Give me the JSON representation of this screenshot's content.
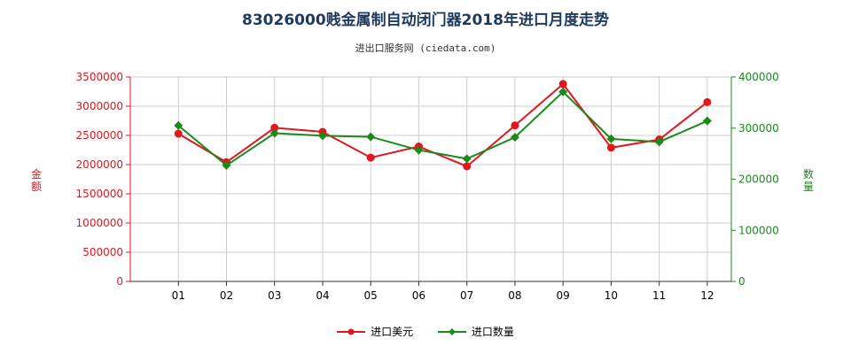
{
  "colors": {
    "amount": "#e3161b",
    "quantity": "#1a8b1a",
    "grid": "#cccccc",
    "title": "#1f3a5f"
  },
  "chart_data": {
    "type": "line",
    "title": "83026000贱金属制自动闭门器2018年进口月度走势",
    "subtitle": "进出口服务网 (ciedata.com)",
    "categories": [
      "01",
      "02",
      "03",
      "04",
      "05",
      "06",
      "07",
      "08",
      "09",
      "10",
      "11",
      "12"
    ],
    "y_left": {
      "label": "金额",
      "ylim": [
        0,
        3500000
      ],
      "ticks": [
        "0",
        "500000",
        "1000000",
        "1500000",
        "2000000",
        "2500000",
        "3000000",
        "3500000"
      ]
    },
    "y_right": {
      "label": "数量",
      "ylim": [
        0,
        400000
      ],
      "ticks": [
        "0",
        "100000",
        "200000",
        "300000",
        "400000"
      ]
    },
    "series": [
      {
        "name": "进口美元",
        "axis": "left",
        "values": [
          2530000,
          2040000,
          2630000,
          2560000,
          2120000,
          2310000,
          1970000,
          2670000,
          3380000,
          2290000,
          2430000,
          3070000
        ]
      },
      {
        "name": "进口数量",
        "axis": "right",
        "values": [
          305000,
          227000,
          290000,
          285000,
          283000,
          257000,
          240000,
          282000,
          371000,
          279000,
          273000,
          314000
        ]
      }
    ],
    "grid": true,
    "legend": "bottom"
  }
}
